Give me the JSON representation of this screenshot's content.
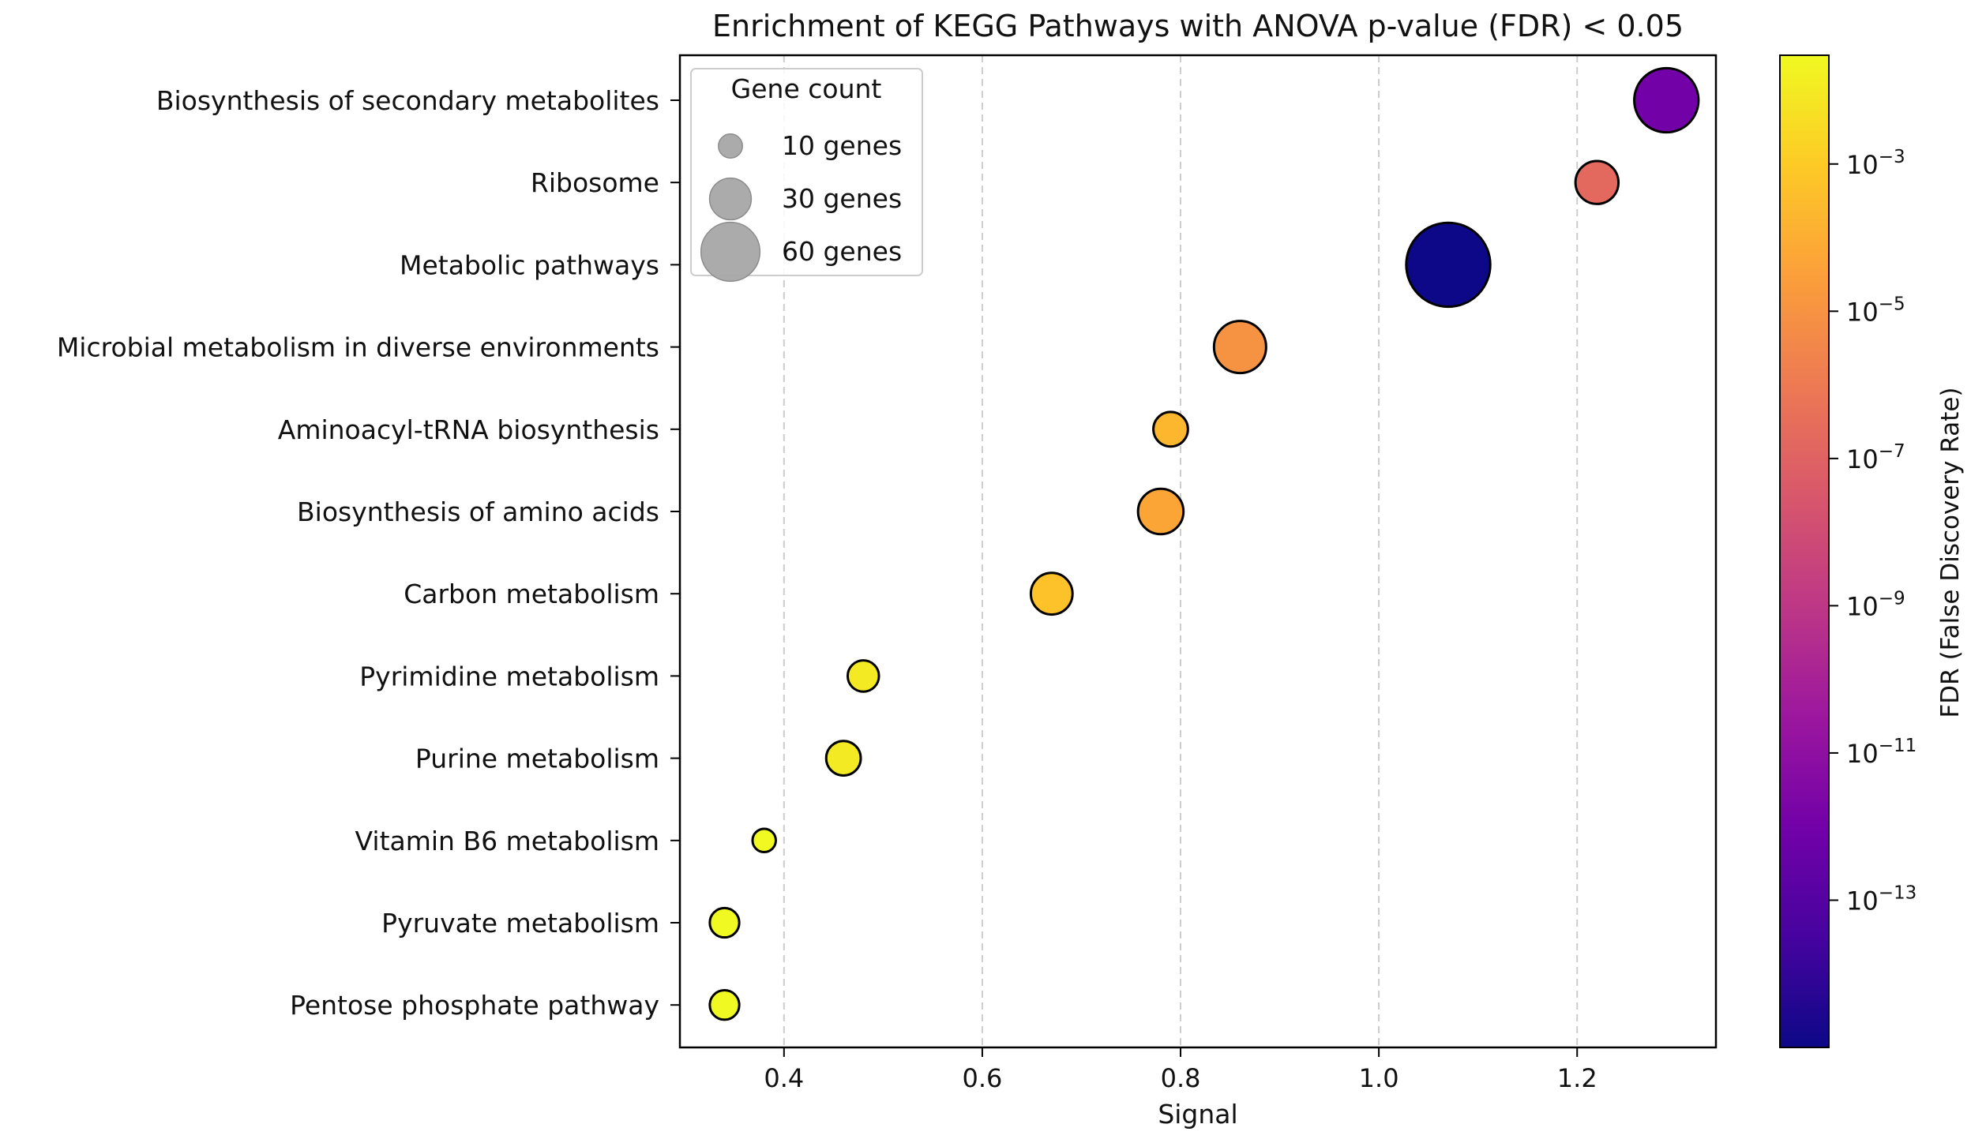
{
  "chart_data": {
    "type": "scatter",
    "title": "Enrichment of KEGG Pathways with ANOVA p-value (FDR) < 0.05",
    "xlabel": "Signal",
    "ylabel": "",
    "xlim": [
      0.295,
      1.34
    ],
    "x_ticks": [
      0.4,
      0.6,
      0.8,
      1.0,
      1.2
    ],
    "x_tick_labels": [
      "0.4",
      "0.6",
      "0.8",
      "1.0",
      "1.2"
    ],
    "x_grid": true,
    "categories": [
      "Biosynthesis of secondary metabolites",
      "Ribosome",
      "Metabolic pathways",
      "Microbial metabolism in diverse environments",
      "Aminoacyl-tRNA biosynthesis",
      "Biosynthesis of amino acids",
      "Carbon metabolism",
      "Pyrimidine metabolism",
      "Purine metabolism",
      "Vitamin B6 metabolism",
      "Pyruvate metabolism",
      "Pentose phosphate pathway"
    ],
    "points": [
      {
        "pathway": "Biosynthesis of secondary metabolites",
        "signal": 1.29,
        "gene_count": 38,
        "fdr": 1e-12
      },
      {
        "pathway": "Ribosome",
        "signal": 1.22,
        "gene_count": 17,
        "fdr": 2e-07
      },
      {
        "pathway": "Metabolic pathways",
        "signal": 1.07,
        "gene_count": 65,
        "fdr": 1e-15
      },
      {
        "pathway": "Microbial metabolism in diverse environments",
        "signal": 0.86,
        "gene_count": 25,
        "fdr": 1e-05
      },
      {
        "pathway": "Aminoacyl-tRNA biosynthesis",
        "signal": 0.79,
        "gene_count": 11,
        "fdr": 0.0002
      },
      {
        "pathway": "Biosynthesis of amino acids",
        "signal": 0.78,
        "gene_count": 19,
        "fdr": 5e-05
      },
      {
        "pathway": "Carbon metabolism",
        "signal": 0.67,
        "gene_count": 16,
        "fdr": 0.0005
      },
      {
        "pathway": "Pyrimidine metabolism",
        "signal": 0.48,
        "gene_count": 9,
        "fdr": 0.01
      },
      {
        "pathway": "Purine metabolism",
        "signal": 0.46,
        "gene_count": 11,
        "fdr": 0.01
      },
      {
        "pathway": "Vitamin B6 metabolism",
        "signal": 0.38,
        "gene_count": 5,
        "fdr": 0.03
      },
      {
        "pathway": "Pyruvate metabolism",
        "signal": 0.34,
        "gene_count": 8,
        "fdr": 0.03
      },
      {
        "pathway": "Pentose phosphate pathway",
        "signal": 0.34,
        "gene_count": 8,
        "fdr": 0.03
      }
    ],
    "legend": {
      "title": "Gene count",
      "placement": "top-left",
      "entries": [
        {
          "label": "10 genes",
          "gene_count": 10
        },
        {
          "label": "30 genes",
          "gene_count": 30
        },
        {
          "label": "60 genes",
          "gene_count": 60
        }
      ]
    },
    "colorbar": {
      "label": "FDR (False Discovery Rate)",
      "scale": "log",
      "colormap": "plasma",
      "range": [
        1e-15,
        0.03
      ],
      "ticks": [
        {
          "base": "10",
          "exp": "−3",
          "value": 0.001
        },
        {
          "base": "10",
          "exp": "−5",
          "value": 1e-05
        },
        {
          "base": "10",
          "exp": "−7",
          "value": 1e-07
        },
        {
          "base": "10",
          "exp": "−9",
          "value": 1e-09
        },
        {
          "base": "10",
          "exp": "−11",
          "value": 1e-11
        },
        {
          "base": "10",
          "exp": "−13",
          "value": 1e-13
        }
      ]
    },
    "colors": {
      "marker_edge": "#000000",
      "grid": "#cccccc",
      "legend_marker": "#a6a6a6",
      "plasma_stops": [
        "#0d0887",
        "#46039f",
        "#7201a8",
        "#9c179e",
        "#bd3786",
        "#d8576b",
        "#ed7953",
        "#fb9f3a",
        "#fdca26",
        "#f0f921"
      ]
    }
  }
}
